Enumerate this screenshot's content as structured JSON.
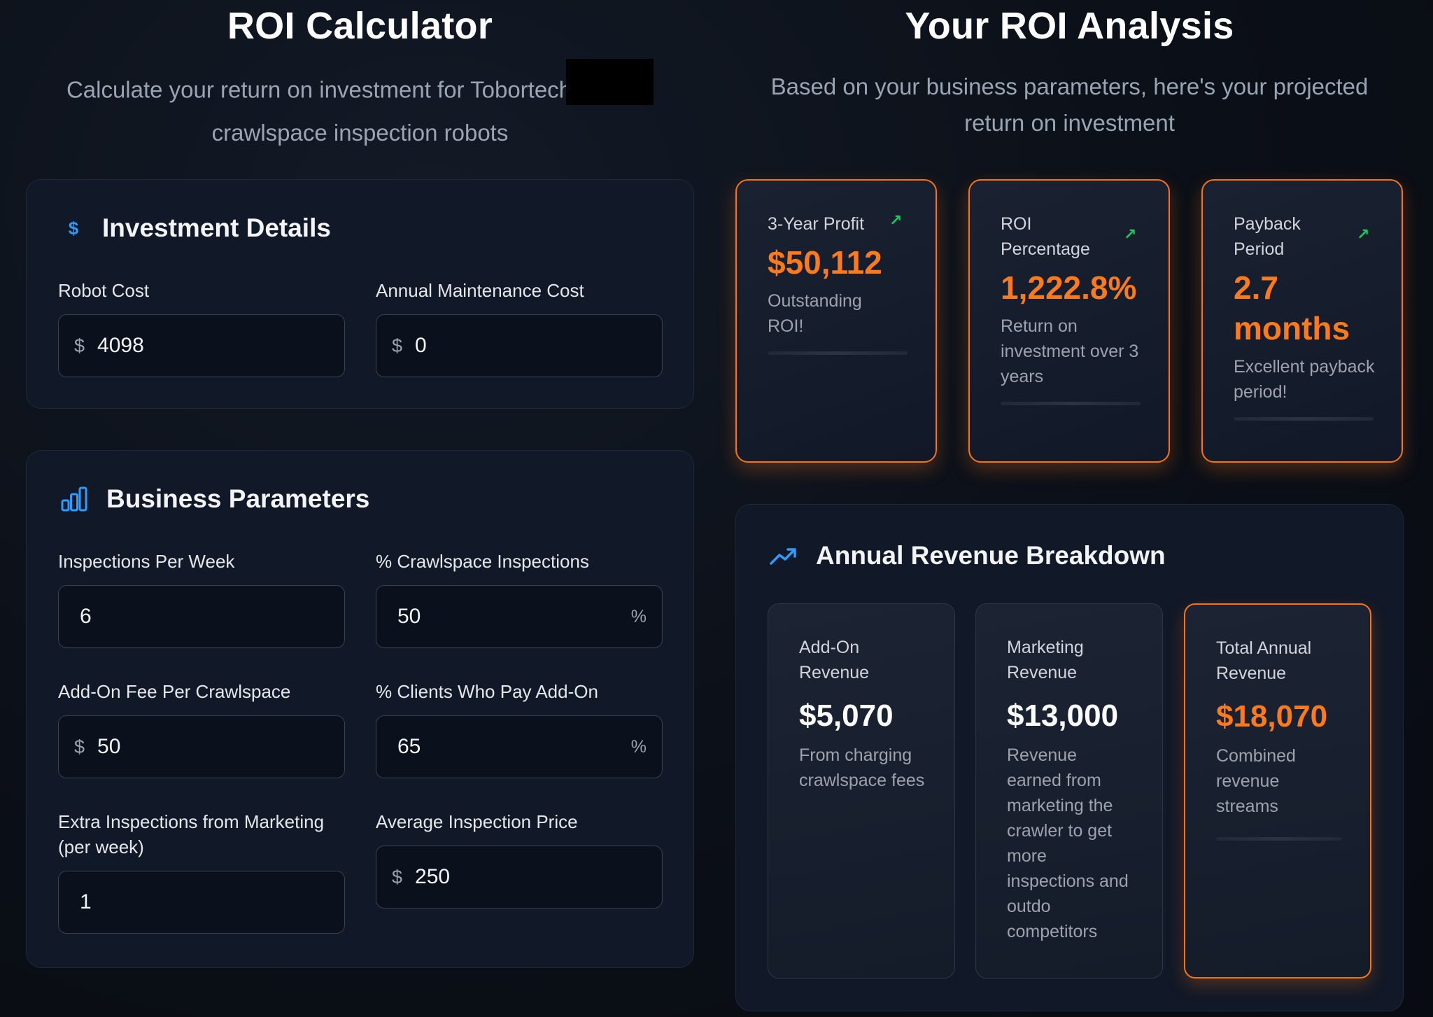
{
  "left": {
    "title": "ROI Calculator",
    "subtitle_line1": "Calculate your return on investment for Tobortech",
    "subtitle_line2": "crawlspace inspection robots"
  },
  "investment": {
    "heading": "Investment Details",
    "robot_cost_label": "Robot Cost",
    "robot_cost_prefix": "$",
    "robot_cost_value": "4098",
    "maintenance_label": "Annual Maintenance Cost",
    "maintenance_prefix": "$",
    "maintenance_value": "0"
  },
  "business": {
    "heading": "Business Parameters",
    "inspections_label": "Inspections Per Week",
    "inspections_value": "6",
    "crawl_pct_label": "% Crawlspace Inspections",
    "crawl_pct_value": "50",
    "crawl_pct_suffix": "%",
    "addon_fee_label": "Add-On Fee Per Crawlspace",
    "addon_fee_prefix": "$",
    "addon_fee_value": "50",
    "clients_pct_label": "% Clients Who Pay Add-On",
    "clients_pct_value": "65",
    "clients_pct_suffix": "%",
    "extra_label_line1": "Extra Inspections from Marketing",
    "extra_label_line2": "(per week)",
    "extra_value": "1",
    "avg_price_label": "Average Inspection Price",
    "avg_price_prefix": "$",
    "avg_price_value": "250"
  },
  "right": {
    "title": "Your ROI Analysis",
    "subtitle_line1": "Based on your business parameters, here's your projected",
    "subtitle_line2": "return on investment"
  },
  "stats": [
    {
      "label_line1": "3-Year Profit",
      "label_line2": "",
      "value_line1": "$50,112",
      "value_line2": "",
      "desc": "Outstanding ROI!"
    },
    {
      "label_line1": "ROI",
      "label_line2": "Percentage",
      "value_line1": "1,222.8%",
      "value_line2": "",
      "desc": "Return on investment over 3 years"
    },
    {
      "label_line1": "Payback",
      "label_line2": "Period",
      "value_line1": "2.7",
      "value_line2": "months",
      "desc": "Excellent payback period!"
    }
  ],
  "revenue": {
    "heading": "Annual Revenue Breakdown",
    "cards": [
      {
        "label": "Add-On Revenue",
        "value": "$5,070",
        "desc": "From charging crawlspace fees"
      },
      {
        "label": "Marketing Revenue",
        "value": "$13,000",
        "desc": "Revenue earned from marketing the crawler to get more inspections and outdo competitors"
      },
      {
        "label": "Total Annual Revenue",
        "value": "$18,070",
        "desc": "Combined revenue streams"
      }
    ]
  },
  "colors": {
    "accent": "#f97316",
    "blue": "#2f9bff",
    "green": "#22c55e"
  }
}
